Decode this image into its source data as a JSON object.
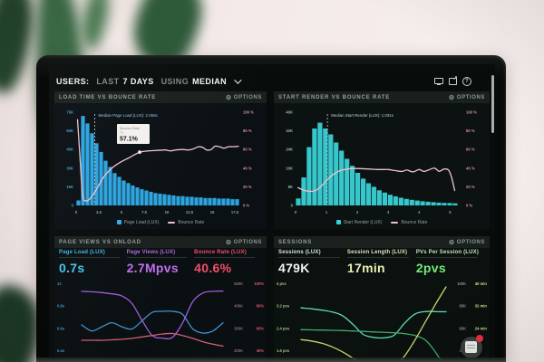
{
  "topbar": {
    "users_label": "USERS:",
    "last_label": "LAST",
    "days_label": "7 DAYS",
    "using_label": "USING",
    "median_label": "MEDIAN",
    "icons": [
      "display-icon",
      "share-icon",
      "help-icon"
    ]
  },
  "panels": {
    "load_time": {
      "title": "LOAD TIME VS BOUNCE RATE",
      "options_label": "OPTIONS"
    },
    "start_render": {
      "title": "START RENDER VS BOUNCE RATE",
      "options_label": "OPTIONS"
    },
    "page_views": {
      "title": "PAGE VIEWS VS ONLOAD",
      "options_label": "OPTIONS",
      "metrics": [
        {
          "label": "Page Load (LUX)",
          "value": "0.7s",
          "label_color": "#45b4e6",
          "value_color": "#46c6f2"
        },
        {
          "label": "Page Views (LUX)",
          "value": "2.7Mpvs",
          "label_color": "#b268e2",
          "value_color": "#c06ef0"
        },
        {
          "label": "Bounce Rate (LUX)",
          "value": "40.6%",
          "label_color": "#ec5168",
          "value_color": "#f0506a"
        }
      ]
    },
    "sessions": {
      "title": "SESSIONS",
      "options_label": "OPTIONS",
      "metrics": [
        {
          "label": "Sessions (LUX)",
          "value": "479K",
          "label_color": "#dce5de",
          "value_color": "#eff5f0"
        },
        {
          "label": "Session Length (LUX)",
          "value": "17min",
          "label_color": "#dfe3bd",
          "value_color": "#e9efb2"
        },
        {
          "label": "PVs Per Session (LUX)",
          "value": "2pvs",
          "label_color": "#c2e6bb",
          "value_color": "#74e878"
        }
      ]
    }
  },
  "notification": {
    "name": "messages-icon",
    "badge_color": "#e8333f"
  },
  "chart_data": [
    {
      "id": "load_time_hist",
      "type": "bar",
      "title": "LOAD TIME VS BOUNCE RATE",
      "bar_series": "Page Load (LUX)",
      "line_series": "Bounce Rate",
      "bar_color": "#2fadea",
      "line_color": "#f0c2cd",
      "left_tick_color": "#4a9cd0",
      "right_tick_color": "#d88f9e",
      "x_tick_color": "#93a3a0",
      "median_color": "#9cc4e4",
      "x_range": [
        0,
        18
      ],
      "x_ticks": [
        0,
        2.5,
        5,
        7.5,
        10,
        12.5,
        15,
        17.5
      ],
      "left_ticks": [
        "75K",
        "60K",
        "45K",
        "30K",
        "15K",
        "0"
      ],
      "left_max_k": 75,
      "right_ticks": [
        "100 %",
        "80 %",
        "60 %",
        "40 %",
        "20 %",
        "0 %"
      ],
      "right_range": [
        0,
        100
      ],
      "bars_x_start": 0,
      "bar_width": 0.5,
      "bar_values_k": [
        4,
        72,
        66,
        58,
        50,
        43,
        36,
        31,
        26,
        23,
        20,
        18,
        16,
        14.5,
        13,
        12,
        11,
        10,
        9.5,
        9,
        8.5,
        8,
        7.5,
        7.5,
        7,
        7,
        6.5,
        6.5,
        6,
        6,
        6,
        5.5,
        5.5,
        5.5,
        5,
        5
      ],
      "line_points": [
        [
          0.15,
          92
        ],
        [
          0.4,
          55
        ],
        [
          0.7,
          12
        ],
        [
          1.0,
          5
        ],
        [
          1.4,
          6
        ],
        [
          1.9,
          12
        ],
        [
          2.4,
          20
        ],
        [
          3.0,
          30
        ],
        [
          3.6,
          37
        ],
        [
          4.2,
          42
        ],
        [
          5.0,
          47
        ],
        [
          6.0,
          52
        ],
        [
          7.0,
          57.1
        ],
        [
          8.0,
          58.5
        ],
        [
          9.0,
          59
        ],
        [
          9.8,
          59.5
        ],
        [
          10.4,
          58.5
        ],
        [
          11.0,
          59.5
        ],
        [
          11.8,
          60
        ],
        [
          12.4,
          59.5
        ],
        [
          13.0,
          61
        ],
        [
          13.5,
          63
        ],
        [
          14.0,
          62
        ],
        [
          14.4,
          59.5
        ],
        [
          14.9,
          60
        ],
        [
          15.3,
          63.5
        ],
        [
          15.8,
          63
        ],
        [
          16.3,
          61.5
        ],
        [
          16.8,
          63
        ],
        [
          17.3,
          63
        ],
        [
          17.9,
          63.5
        ]
      ],
      "median": {
        "x": 2.056,
        "label": "Median Page Load (LUX): 2.056s"
      },
      "tooltip": {
        "series": "Bounce Rate",
        "x_label": "7s",
        "value": "57.1%",
        "at_x": 7,
        "at_pct": 57.1
      },
      "legend": [
        {
          "label": "Page Load (LUX)",
          "color": "#2fadea",
          "shape": "square"
        },
        {
          "label": "Bounce Rate",
          "color": "#f0c2cd",
          "shape": "line"
        }
      ]
    },
    {
      "id": "start_render_hist",
      "type": "bar",
      "title": "START RENDER VS BOUNCE RATE",
      "bar_series": "Start Render (LUX)",
      "line_series": "Bounce Rate",
      "bar_color": "#39d2d8",
      "line_color": "#f0c2cd",
      "left_tick_color": "#8fbcb8",
      "right_tick_color": "#d88f9e",
      "x_tick_color": "#93a3a0",
      "median_color": "#bcd8d4",
      "x_range": [
        0,
        5.4
      ],
      "x_ticks": [
        0,
        1,
        2,
        3,
        4,
        5
      ],
      "left_ticks": [
        "40K",
        "32K",
        "24K",
        "16K",
        "8K",
        "0"
      ],
      "left_max_k": 40,
      "right_ticks": [
        "100 %",
        "80 %",
        "60 %",
        "40 %",
        "20 %",
        "0 %"
      ],
      "right_range": [
        0,
        100
      ],
      "bars_x_start": 0,
      "bar_width": 0.175,
      "bar_values_k": [
        3,
        12,
        25,
        33,
        35.5,
        33,
        30.5,
        27,
        23.5,
        20,
        17,
        14,
        11.5,
        9.5,
        8,
        6.5,
        5.5,
        4.6,
        3.9,
        3.3,
        2.8,
        2.4,
        2.1,
        1.8,
        1.6,
        1.4,
        1.2,
        1.1,
        1,
        0.9
      ],
      "line_points": [
        [
          0.08,
          19
        ],
        [
          0.3,
          16
        ],
        [
          0.5,
          15
        ],
        [
          0.7,
          17
        ],
        [
          0.9,
          23
        ],
        [
          1.1,
          30
        ],
        [
          1.3,
          35
        ],
        [
          1.5,
          38
        ],
        [
          1.8,
          39.5
        ],
        [
          2.1,
          39.5
        ],
        [
          2.4,
          39
        ],
        [
          2.7,
          38.5
        ],
        [
          3.0,
          38.5
        ],
        [
          3.2,
          37.5
        ],
        [
          3.45,
          36.5
        ],
        [
          3.6,
          38
        ],
        [
          3.8,
          36
        ],
        [
          4.0,
          38.5
        ],
        [
          4.15,
          36.5
        ],
        [
          4.3,
          38
        ],
        [
          4.5,
          40
        ],
        [
          4.65,
          36.5
        ],
        [
          4.8,
          39
        ],
        [
          4.95,
          38
        ],
        [
          5.05,
          30
        ],
        [
          5.15,
          16
        ]
      ],
      "median": {
        "x": 1.031,
        "label": "Median Start Render (LUX): 1.031s"
      },
      "legend": [
        {
          "label": "Start Render (LUX)",
          "color": "#39d2d8",
          "shape": "square"
        },
        {
          "label": "Bounce Rate",
          "color": "#f0c2cd",
          "shape": "line"
        }
      ]
    },
    {
      "id": "page_views_lines",
      "type": "line",
      "title": "PAGE VIEWS VS ONLOAD",
      "left_ticks": [
        "1s",
        "0.8s",
        "0.6s",
        "0.4s"
      ],
      "left_tick_color": "#3f9bcd",
      "right_ticks": [
        [
          "500K",
          "100%"
        ],
        [
          "400K",
          "80%"
        ],
        [
          "300K",
          "60%"
        ],
        [
          "200K",
          "40%"
        ]
      ],
      "right_tick_colors": [
        "#bd939e",
        "#e2576d"
      ],
      "lines": [
        {
          "name": "Page Load (LUX)",
          "color": "#3f93d6",
          "unit": "s",
          "range": [
            0.35,
            1.05
          ],
          "values": [
            0.64,
            0.58,
            0.62,
            0.66,
            0.62,
            0.6,
            0.68,
            0.76,
            0.77,
            0.77,
            0.74,
            0.6,
            0.56,
            0.58,
            0.66
          ]
        },
        {
          "name": "Page Views (LUX)",
          "color": "#a55ce0",
          "unit": "K",
          "range": [
            180,
            520
          ],
          "values": [
            478,
            476,
            472,
            466,
            456,
            420,
            340,
            270,
            258,
            262,
            330,
            430,
            470,
            478,
            479
          ]
        },
        {
          "name": "Bounce Rate (LUX)",
          "color": "#d6607a",
          "unit": "%",
          "range": [
            30,
            105
          ],
          "values": [
            45,
            45,
            45,
            45.5,
            46,
            47,
            48.5,
            50,
            51.5,
            52,
            50,
            47,
            43.5,
            41,
            39
          ]
        }
      ]
    },
    {
      "id": "sessions_lines",
      "type": "line",
      "title": "SESSIONS",
      "left_ticks": [
        "4 pvs",
        "3.2 pvs",
        "2.4 pvs",
        "1.6 pvs"
      ],
      "left_tick_color": "#a8c487",
      "right_ticks": [
        [
          "100K",
          "40 min"
        ],
        [
          "80K",
          "32 min"
        ],
        [
          "60K",
          "24 min"
        ],
        [
          "40K",
          ""
        ]
      ],
      "right_tick_colors": [
        "#b7c8bc",
        "#cde08f"
      ],
      "lines": [
        {
          "name": "Sessions (LUX)",
          "color": "#5fd9b8",
          "unit": "pvs",
          "range": [
            1.15,
            4.35
          ],
          "values": [
            3.22,
            3.18,
            3.12,
            3.04,
            2.88,
            2.5,
            2.05,
            1.92,
            1.9,
            2.02,
            2.55,
            2.95,
            3.06,
            3.06,
            3.05
          ]
        },
        {
          "name": "PVs Per Session (LUX)",
          "color": "#3fae72",
          "unit": "pvs",
          "range": [
            1.15,
            4.35
          ],
          "values": [
            2.26,
            2.25,
            2.24,
            2.23,
            2.22,
            2.2,
            2.18,
            2.16,
            2.14,
            2.12,
            2.08,
            2.0,
            1.8,
            1.25,
            0.5
          ]
        },
        {
          "name": "Session Length (LUX)",
          "color": "#cdd96e",
          "unit": "pvs",
          "range": [
            1.15,
            4.35
          ],
          "values": [
            1.82,
            1.76,
            1.66,
            1.5,
            1.28,
            1.0,
            0.72,
            0.52,
            0.45,
            0.62,
            1.1,
            1.8,
            2.6,
            3.4,
            4.15
          ]
        }
      ]
    }
  ]
}
